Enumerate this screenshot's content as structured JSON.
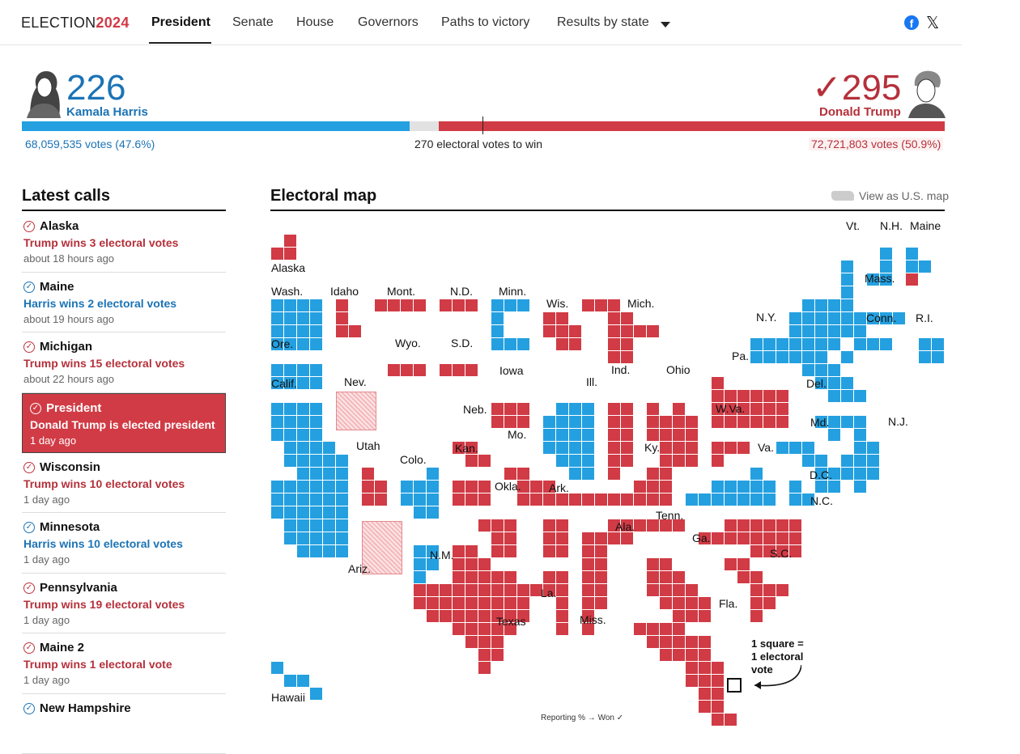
{
  "nav": {
    "logo_prefix": "ELECTION",
    "logo_year": "2024",
    "tabs": [
      "President",
      "Senate",
      "House",
      "Governors",
      "Paths to victory",
      "Results by state"
    ],
    "icons": [
      "facebook-icon",
      "x-icon",
      "chevron-down-icon"
    ]
  },
  "header": {
    "harris": {
      "electoral": "226",
      "name": "Kamala Harris",
      "votes": "68,059,535 votes (47.6%)"
    },
    "trump": {
      "electoral": "295",
      "check": "✓",
      "name": "Donald Trump",
      "votes": "72,721,803 votes (50.9%)"
    },
    "to_win": "270 electoral votes to win",
    "colors": {
      "harris": "#24a0e0",
      "trump": "#d13b45",
      "undecided": "#e2e2e2"
    },
    "bar": {
      "harris_ev": 226,
      "trump_ev": 295,
      "total_ev": 538
    }
  },
  "latest_calls": {
    "title": "Latest calls",
    "items": [
      {
        "party": "t",
        "title": "Alaska",
        "sub": "Trump wins 3 electoral votes",
        "time": "about 18 hours ago"
      },
      {
        "party": "h",
        "title": "Maine",
        "sub": "Harris wins 2 electoral votes",
        "time": "about 19 hours ago"
      },
      {
        "party": "t",
        "title": "Michigan",
        "sub": "Trump wins 15 electoral votes",
        "time": "about 22 hours ago"
      },
      {
        "party": "hl",
        "title": "President",
        "sub": "Donald Trump is elected president",
        "time": "1 day ago"
      },
      {
        "party": "t",
        "title": "Wisconsin",
        "sub": "Trump wins 10 electoral votes",
        "time": "1 day ago"
      },
      {
        "party": "h",
        "title": "Minnesota",
        "sub": "Harris wins 10 electoral votes",
        "time": "1 day ago"
      },
      {
        "party": "t",
        "title": "Pennsylvania",
        "sub": "Trump wins 19 electoral votes",
        "time": "1 day ago"
      },
      {
        "party": "t",
        "title": "Maine 2",
        "sub": "Trump wins 1 electoral vote",
        "time": "1 day ago"
      },
      {
        "party": "h",
        "title": "New Hampshire",
        "sub": "",
        "time": ""
      }
    ]
  },
  "map": {
    "title": "Electoral map",
    "view_link": "View as U.S. map",
    "legend": [
      "1 square =",
      "1 electoral",
      "vote"
    ],
    "footnote": "Reporting % →    Won ✓",
    "states": [
      {
        "name": "Alaska",
        "winner": "Trump"
      },
      {
        "name": "Hawaii",
        "winner": "Harris"
      },
      {
        "name": "Wash.",
        "winner": "Harris"
      },
      {
        "name": "Idaho",
        "winner": "Trump"
      },
      {
        "name": "Mont.",
        "winner": "Trump"
      },
      {
        "name": "N.D.",
        "winner": "Trump"
      },
      {
        "name": "Minn.",
        "winner": "Harris"
      },
      {
        "name": "Wis.",
        "winner": "Trump"
      },
      {
        "name": "Mich.",
        "winner": "Trump"
      },
      {
        "name": "Vt.",
        "winner": "Harris"
      },
      {
        "name": "N.H.",
        "winner": "Harris"
      },
      {
        "name": "Maine",
        "winner": "Harris"
      },
      {
        "name": "Ore.",
        "winner": "Harris"
      },
      {
        "name": "Wyo.",
        "winner": "Trump"
      },
      {
        "name": "S.D.",
        "winner": "Trump"
      },
      {
        "name": "Mass.",
        "winner": "Harris"
      },
      {
        "name": "N.Y.",
        "winner": "Harris"
      },
      {
        "name": "Conn.",
        "winner": "Harris"
      },
      {
        "name": "R.I.",
        "winner": "Harris"
      },
      {
        "name": "Calif.",
        "winner": "Harris"
      },
      {
        "name": "Nev.",
        "winner": ""
      },
      {
        "name": "Iowa",
        "winner": "Trump"
      },
      {
        "name": "Ill.",
        "winner": "Harris"
      },
      {
        "name": "Ind.",
        "winner": "Trump"
      },
      {
        "name": "Ohio",
        "winner": "Trump"
      },
      {
        "name": "Pa.",
        "winner": "Trump"
      },
      {
        "name": "Neb.",
        "winner": "Trump"
      },
      {
        "name": "Del.",
        "winner": "Harris"
      },
      {
        "name": "N.J.",
        "winner": "Harris"
      },
      {
        "name": "W.Va.",
        "winner": "Trump"
      },
      {
        "name": "Md.",
        "winner": "Harris"
      },
      {
        "name": "Utah",
        "winner": "Trump"
      },
      {
        "name": "Colo.",
        "winner": "Harris"
      },
      {
        "name": "Kan.",
        "winner": "Trump"
      },
      {
        "name": "Mo.",
        "winner": "Trump"
      },
      {
        "name": "Ky.",
        "winner": "Trump"
      },
      {
        "name": "Va.",
        "winner": "Harris"
      },
      {
        "name": "D.C.",
        "winner": "Harris"
      },
      {
        "name": "Okla.",
        "winner": "Trump"
      },
      {
        "name": "Ark.",
        "winner": "Trump"
      },
      {
        "name": "Tenn.",
        "winner": "Trump"
      },
      {
        "name": "N.C.",
        "winner": "Trump"
      },
      {
        "name": "Ariz.",
        "winner": ""
      },
      {
        "name": "N.M.",
        "winner": "Harris"
      },
      {
        "name": "Ala.",
        "winner": "Trump"
      },
      {
        "name": "Ga.",
        "winner": "Trump"
      },
      {
        "name": "S.C.",
        "winner": "Trump"
      },
      {
        "name": "La.",
        "winner": "Trump"
      },
      {
        "name": "Miss.",
        "winner": "Trump"
      },
      {
        "name": "Texas",
        "winner": "Trump"
      },
      {
        "name": "Fla.",
        "winner": "Trump"
      }
    ]
  }
}
